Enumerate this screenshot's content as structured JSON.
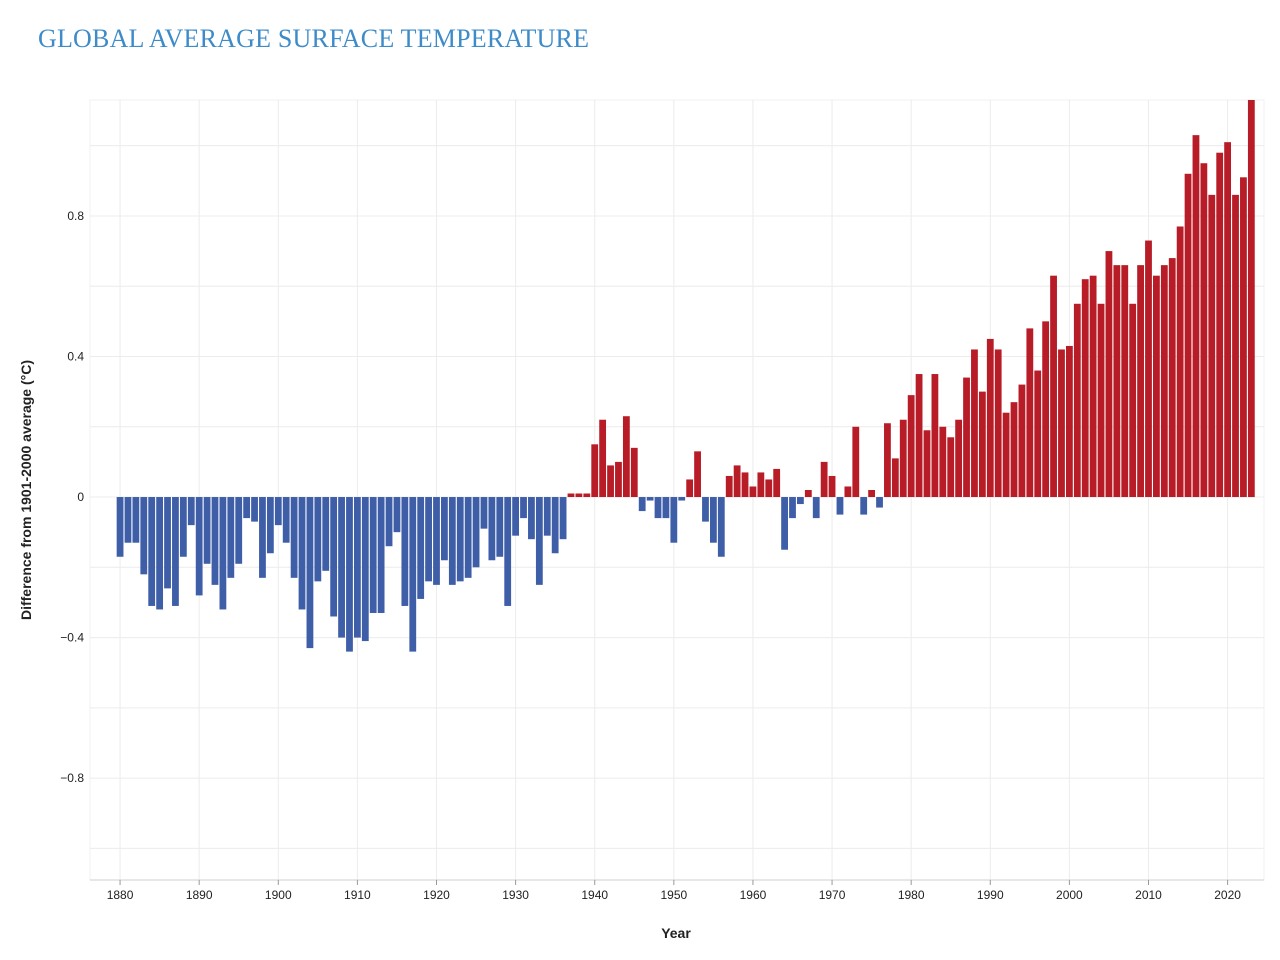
{
  "chart_data": {
    "type": "bar",
    "title": "GLOBAL AVERAGE SURFACE TEMPERATURE",
    "xlabel": "Year",
    "ylabel": "Difference from 1901-2000 average (°C)",
    "ylim": [
      -1.09,
      1.13
    ],
    "xlim": [
      1876.2,
      2024.6
    ],
    "y_ticks": [
      0.8,
      0.4,
      0,
      -0.4,
      -0.8
    ],
    "y_tick_labels": [
      "0.8",
      "0.4",
      "0",
      "−0.4",
      "−0.8"
    ],
    "x_ticks": [
      1880,
      1890,
      1900,
      1910,
      1920,
      1930,
      1940,
      1950,
      1960,
      1970,
      1980,
      1990,
      2000,
      2010,
      2020
    ],
    "x_tick_labels": [
      "1880",
      "1890",
      "1900",
      "1910",
      "1920",
      "1930",
      "1940",
      "1950",
      "1960",
      "1970",
      "1980",
      "1990",
      "2000",
      "2010",
      "2020"
    ],
    "grid": true,
    "colors": {
      "positive": "#b71c27",
      "negative": "#3f5ea8",
      "title": "#3d8bc9"
    },
    "x": [
      1880,
      1881,
      1882,
      1883,
      1884,
      1885,
      1886,
      1887,
      1888,
      1889,
      1890,
      1891,
      1892,
      1893,
      1894,
      1895,
      1896,
      1897,
      1898,
      1899,
      1900,
      1901,
      1902,
      1903,
      1904,
      1905,
      1906,
      1907,
      1908,
      1909,
      1910,
      1911,
      1912,
      1913,
      1914,
      1915,
      1916,
      1917,
      1918,
      1919,
      1920,
      1921,
      1922,
      1923,
      1924,
      1925,
      1926,
      1927,
      1928,
      1929,
      1930,
      1931,
      1932,
      1933,
      1934,
      1935,
      1936,
      1937,
      1938,
      1939,
      1940,
      1941,
      1942,
      1943,
      1944,
      1945,
      1946,
      1947,
      1948,
      1949,
      1950,
      1951,
      1952,
      1953,
      1954,
      1955,
      1956,
      1957,
      1958,
      1959,
      1960,
      1961,
      1962,
      1963,
      1964,
      1965,
      1966,
      1967,
      1968,
      1969,
      1970,
      1971,
      1972,
      1973,
      1974,
      1975,
      1976,
      1977,
      1978,
      1979,
      1980,
      1981,
      1982,
      1983,
      1984,
      1985,
      1986,
      1987,
      1988,
      1989,
      1990,
      1991,
      1992,
      1993,
      1994,
      1995,
      1996,
      1997,
      1998,
      1999,
      2000,
      2001,
      2002,
      2003,
      2004,
      2005,
      2006,
      2007,
      2008,
      2009,
      2010,
      2011,
      2012,
      2013,
      2014,
      2015,
      2016,
      2017,
      2018,
      2019,
      2020,
      2021,
      2022,
      2023
    ],
    "values": [
      -0.17,
      -0.13,
      -0.13,
      -0.22,
      -0.31,
      -0.32,
      -0.26,
      -0.31,
      -0.17,
      -0.08,
      -0.28,
      -0.19,
      -0.25,
      -0.32,
      -0.23,
      -0.19,
      -0.06,
      -0.07,
      -0.23,
      -0.16,
      -0.08,
      -0.13,
      -0.23,
      -0.32,
      -0.43,
      -0.24,
      -0.21,
      -0.34,
      -0.4,
      -0.44,
      -0.4,
      -0.41,
      -0.33,
      -0.33,
      -0.14,
      -0.1,
      -0.31,
      -0.44,
      -0.29,
      -0.24,
      -0.25,
      -0.18,
      -0.25,
      -0.24,
      -0.23,
      -0.2,
      -0.09,
      -0.18,
      -0.17,
      -0.31,
      -0.11,
      -0.06,
      -0.12,
      -0.25,
      -0.11,
      -0.16,
      -0.12,
      0.01,
      0.01,
      0.01,
      0.15,
      0.22,
      0.09,
      0.1,
      0.23,
      0.14,
      -0.04,
      -0.01,
      -0.06,
      -0.06,
      -0.13,
      -0.01,
      0.05,
      0.13,
      -0.07,
      -0.13,
      -0.17,
      0.06,
      0.09,
      0.07,
      0.03,
      0.07,
      0.05,
      0.08,
      -0.15,
      -0.06,
      -0.02,
      0.02,
      -0.06,
      0.1,
      0.06,
      -0.05,
      0.03,
      0.2,
      -0.05,
      0.02,
      -0.03,
      0.21,
      0.11,
      0.22,
      0.29,
      0.35,
      0.19,
      0.35,
      0.2,
      0.17,
      0.22,
      0.34,
      0.42,
      0.3,
      0.45,
      0.42,
      0.24,
      0.27,
      0.32,
      0.48,
      0.36,
      0.5,
      0.63,
      0.42,
      0.43,
      0.55,
      0.62,
      0.63,
      0.55,
      0.7,
      0.66,
      0.66,
      0.55,
      0.66,
      0.73,
      0.63,
      0.66,
      0.68,
      0.77,
      0.92,
      1.03,
      0.95,
      0.86,
      0.98,
      1.01,
      0.86,
      0.91,
      1.13
    ]
  }
}
